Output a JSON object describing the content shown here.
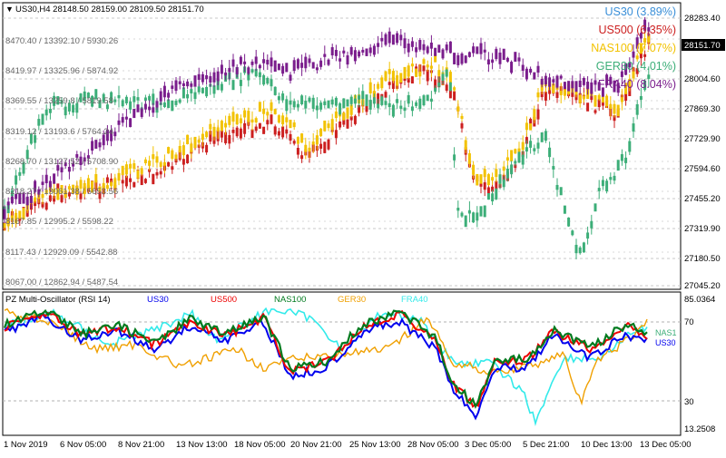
{
  "header": {
    "symbol_line": "US30,H4  28148.50 28159.00 28109.50 28151.70"
  },
  "left_scales": [
    "8470.40 / 13392.10 / 5930.26",
    "8419.97 / 13325.96 / 5874.92",
    "8369.55 / 13259.8 / 5819.58",
    "8319.12 / 13193.6 / 5764.24",
    "8268.70 / 13127.52 / 5708.90",
    "8218.27 / 13061.38 / 5653.56",
    "8167.85 / 12995.2 / 5598.22",
    "8117.43 / 12929.09 / 5542.88",
    "8067.00 / 12862.94 / 5487.54"
  ],
  "legend": [
    {
      "label": "US30 (3.89%)",
      "color": "#3a8fd8"
    },
    {
      "label": "US500 (6.35%)",
      "color": "#cc1f1f"
    },
    {
      "label": "NAS100 (7.07%)",
      "color": "#f2c200"
    },
    {
      "label": "GER30 (4.01%)",
      "color": "#3cae78"
    },
    {
      "label": "FRA40 (8.04%)",
      "color": "#7a1d8c"
    }
  ],
  "price_axis": {
    "ticks": [
      "28283.40",
      "28004.60",
      "27869.30",
      "27729.90",
      "27594.60",
      "27455.20",
      "27319.90",
      "27180.50",
      "27045.20"
    ],
    "current": "28151.70"
  },
  "oscillator": {
    "title": "PZ Multi-Oscillator (RSI 14)",
    "series": [
      {
        "name": "US30",
        "color": "#0000ee"
      },
      {
        "name": "US500",
        "color": "#ee0000"
      },
      {
        "name": "NAS100",
        "color": "#007a1e"
      },
      {
        "name": "GER30",
        "color": "#f0a000"
      },
      {
        "name": "FRA40",
        "color": "#33eaea"
      }
    ],
    "axis_ticks": [
      "85.0364",
      "70",
      "30",
      "13.2508"
    ],
    "end_labels": [
      "NAS1",
      "US30"
    ]
  },
  "x_axis": {
    "ticks": [
      "1 Nov 2019",
      "6 Nov 05:00",
      "8 Nov 21:00",
      "13 Nov 13:00",
      "18 Nov 05:00",
      "20 Nov 21:00",
      "25 Nov 13:00",
      "28 Nov 05:00",
      "3 Dec 05:00",
      "5 Dec 21:00",
      "10 Dec 13:00",
      "13 Dec 05:00"
    ]
  }
}
